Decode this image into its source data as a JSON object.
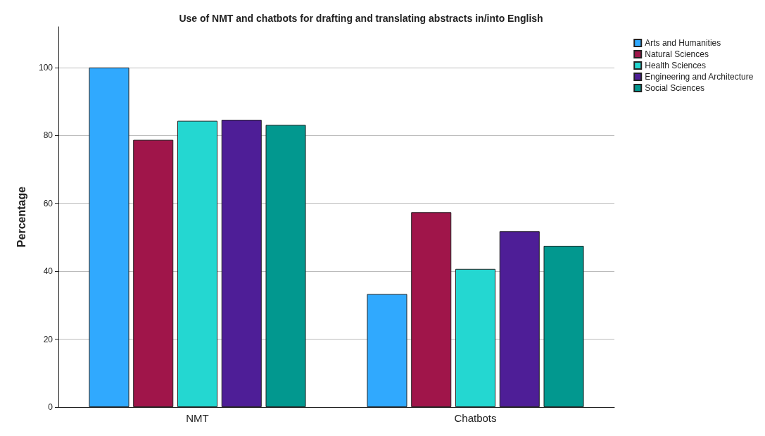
{
  "chart_data": {
    "type": "bar",
    "title": "Use of NMT and chatbots for drafting and translating abstracts in/into English",
    "ylabel": "Percentage",
    "categories": [
      "NMT",
      "Chatbots"
    ],
    "series": [
      {
        "name": "Arts and Humanities",
        "color": "#30a9fe",
        "values": [
          100,
          33.3
        ]
      },
      {
        "name": "Natural Sciences",
        "color": "#a0154a",
        "values": [
          78.7,
          57.4
        ]
      },
      {
        "name": "Health Sciences",
        "color": "#24d7d1",
        "values": [
          84.3,
          40.7
        ]
      },
      {
        "name": "Engineering and Architecture",
        "color": "#4e1e97",
        "values": [
          84.6,
          51.8
        ]
      },
      {
        "name": "Social Sciences",
        "color": "#02988f",
        "values": [
          83.1,
          47.5
        ]
      }
    ],
    "ylim": [
      0,
      112
    ],
    "yticks": [
      0,
      20,
      40,
      60,
      80,
      100
    ],
    "grid": "y",
    "legend": "top right"
  }
}
